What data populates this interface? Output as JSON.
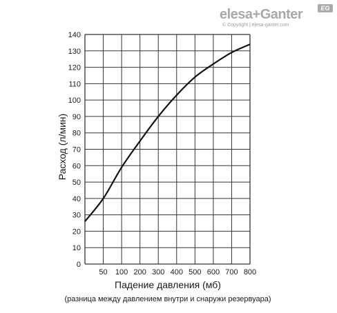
{
  "brand": {
    "name": "elesa+Ganter",
    "badge": "EG",
    "copyright": "© Copyright | elesa-ganter.com"
  },
  "chart_data": {
    "type": "line",
    "xlabel": "Падение давления (мб)",
    "xlabel_sub": "(разница между давлением внутри и снаружи резервуара)",
    "ylabel": "Расход (л/мин)",
    "x_ticks": [
      "50",
      "100",
      "200",
      "300",
      "400",
      "500",
      "600",
      "700",
      "800"
    ],
    "y_ticks": [
      0,
      10,
      20,
      30,
      40,
      50,
      60,
      70,
      80,
      90,
      100,
      110,
      120,
      130,
      140
    ],
    "ylim": [
      0,
      140
    ],
    "grid": true,
    "series": [
      {
        "points": [
          {
            "x": 0,
            "y": 26
          },
          {
            "x": 50,
            "y": 40
          },
          {
            "x": 100,
            "y": 59
          },
          {
            "x": 200,
            "y": 75
          },
          {
            "x": 300,
            "y": 90
          },
          {
            "x": 400,
            "y": 103
          },
          {
            "x": 500,
            "y": 114
          },
          {
            "x": 600,
            "y": 122
          },
          {
            "x": 700,
            "y": 129
          },
          {
            "x": 800,
            "y": 134
          }
        ]
      }
    ],
    "line_color": "#111111"
  }
}
